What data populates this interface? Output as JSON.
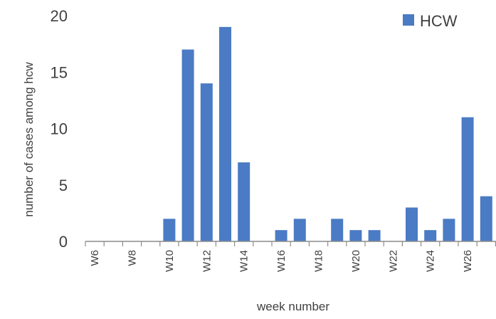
{
  "chart_data": {
    "type": "bar",
    "categories": [
      "W6",
      "W7",
      "W8",
      "W9",
      "W10",
      "W11",
      "W12",
      "W13",
      "W14",
      "W15",
      "W16",
      "W17",
      "W18",
      "W19",
      "W20",
      "W21",
      "W22",
      "W23",
      "W24",
      "W25",
      "W26",
      "W27"
    ],
    "tick_labels": [
      "W6",
      "",
      "W8",
      "",
      "W10",
      "",
      "W12",
      "",
      "W14",
      "",
      "W16",
      "",
      "W18",
      "",
      "W20",
      "",
      "W22",
      "",
      "W24",
      "",
      "W26",
      ""
    ],
    "series": [
      {
        "name": "HCW",
        "values": [
          0,
          0,
          0,
          0,
          2,
          17,
          14,
          19,
          7,
          0,
          1,
          2,
          0,
          2,
          1,
          1,
          0,
          3,
          1,
          2,
          11,
          4
        ]
      }
    ],
    "xlabel": "week number",
    "ylabel": "number of cases among hcw",
    "ylim": [
      0,
      20
    ],
    "yticks": [
      "0",
      "5",
      "10",
      "15",
      "20"
    ],
    "legend": {
      "position": "top-right",
      "label": "HCW"
    },
    "grid": false,
    "colors": {
      "bar": "#4a7bc4",
      "axis": "#8c8c8c",
      "text": "#404040"
    }
  }
}
